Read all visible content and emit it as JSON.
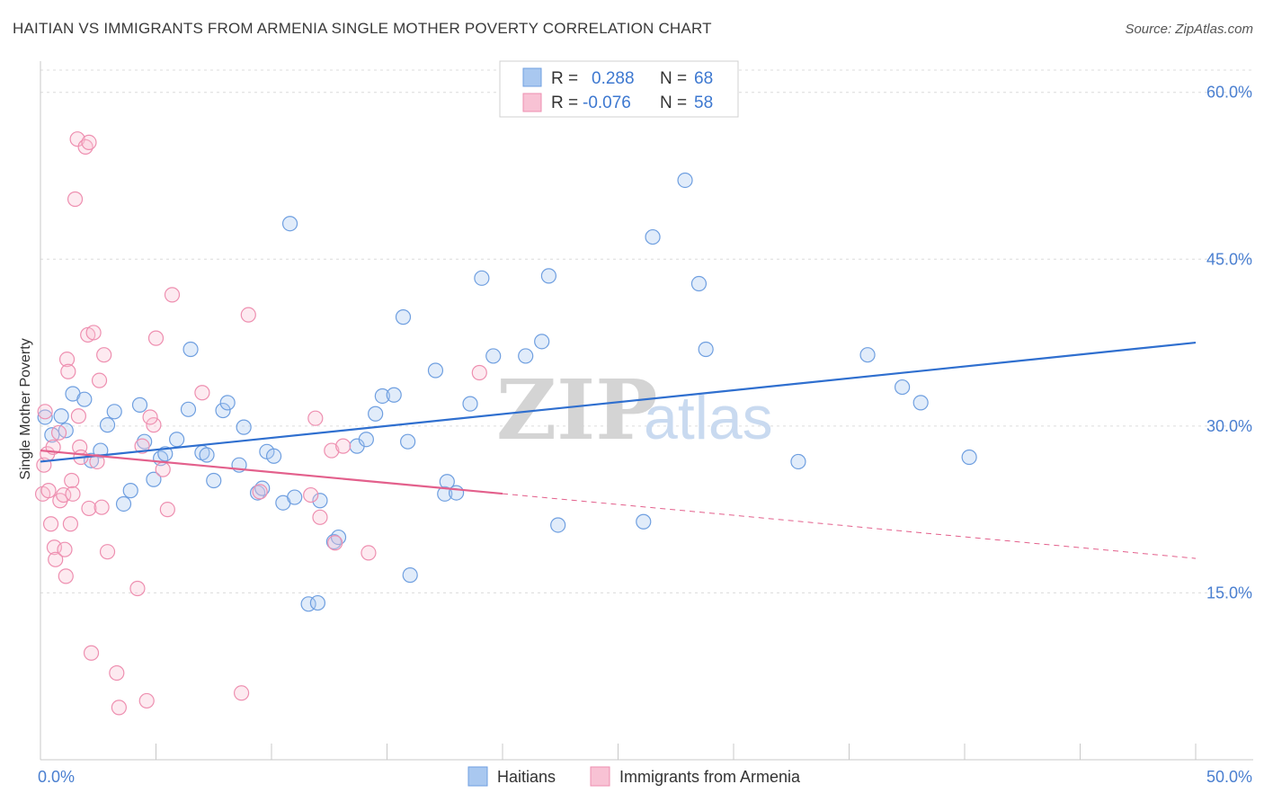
{
  "header": {
    "title": "HAITIAN VS IMMIGRANTS FROM ARMENIA SINGLE MOTHER POVERTY CORRELATION CHART",
    "source": "Source: ZipAtlas.com"
  },
  "watermark": {
    "zip": "ZIP",
    "atlas": "atlas"
  },
  "legend": {
    "rows": [
      {
        "r_label": "R =",
        "r_value": "0.288",
        "n_label": "N =",
        "n_value": "68",
        "color": "#a9c8f0",
        "stroke": "#6f9fe0"
      },
      {
        "r_label": "R =",
        "r_value": "-0.076",
        "n_label": "N =",
        "n_value": "58",
        "color": "#f8c2d4",
        "stroke": "#ee8fb0"
      }
    ]
  },
  "colors": {
    "blue": "#4a84d8",
    "blue_line": "#2f6fcf",
    "pink": "#ec8fb0",
    "pink_line": "#e3608c",
    "grid": "#dcdcdc",
    "tick_text": "#4a7fd0"
  },
  "chart_data": {
    "type": "scatter",
    "title": "HAITIAN VS IMMIGRANTS FROM ARMENIA SINGLE MOTHER POVERTY CORRELATION CHART",
    "xlabel": "",
    "ylabel": "Single Mother Poverty",
    "xlim": [
      0,
      50
    ],
    "ylim": [
      0,
      62
    ],
    "x_tick_labels": [
      "0.0%",
      "50.0%"
    ],
    "y_ticks": [
      15,
      30,
      45,
      60
    ],
    "y_tick_labels": [
      "15.0%",
      "30.0%",
      "45.0%",
      "60.0%"
    ],
    "grid": true,
    "legend_position": "top-center",
    "series": [
      {
        "name": "Haitians",
        "r": 0.288,
        "n": 68,
        "trend": {
          "x": [
            0,
            50
          ],
          "y": [
            26.8,
            37.5
          ],
          "dashed_from": null
        },
        "points": [
          [
            0.2,
            30.8
          ],
          [
            0.5,
            29.2
          ],
          [
            0.9,
            30.9
          ],
          [
            1.1,
            29.6
          ],
          [
            1.4,
            32.9
          ],
          [
            1.9,
            32.4
          ],
          [
            2.2,
            26.9
          ],
          [
            2.6,
            27.8
          ],
          [
            2.9,
            30.1
          ],
          [
            3.2,
            31.3
          ],
          [
            3.6,
            23.0
          ],
          [
            3.9,
            24.2
          ],
          [
            4.3,
            31.9
          ],
          [
            4.5,
            28.6
          ],
          [
            4.9,
            25.2
          ],
          [
            5.2,
            27.1
          ],
          [
            5.4,
            27.5
          ],
          [
            5.9,
            28.8
          ],
          [
            6.4,
            31.5
          ],
          [
            6.5,
            36.9
          ],
          [
            7.0,
            27.6
          ],
          [
            7.2,
            27.4
          ],
          [
            7.5,
            25.1
          ],
          [
            7.9,
            31.4
          ],
          [
            8.1,
            32.1
          ],
          [
            8.6,
            26.5
          ],
          [
            8.8,
            29.9
          ],
          [
            9.4,
            24.0
          ],
          [
            9.6,
            24.4
          ],
          [
            9.8,
            27.7
          ],
          [
            10.1,
            27.3
          ],
          [
            10.5,
            23.1
          ],
          [
            11.0,
            23.6
          ],
          [
            10.8,
            48.2
          ],
          [
            11.6,
            14.0
          ],
          [
            12.0,
            14.1
          ],
          [
            12.1,
            23.3
          ],
          [
            12.7,
            19.6
          ],
          [
            12.9,
            20.0
          ],
          [
            13.7,
            28.2
          ],
          [
            14.1,
            28.8
          ],
          [
            14.5,
            31.1
          ],
          [
            14.8,
            32.7
          ],
          [
            15.3,
            32.8
          ],
          [
            15.7,
            39.8
          ],
          [
            15.9,
            28.6
          ],
          [
            16.0,
            16.6
          ],
          [
            17.1,
            35.0
          ],
          [
            17.5,
            23.9
          ],
          [
            17.6,
            25.0
          ],
          [
            18.0,
            24.0
          ],
          [
            18.6,
            32.0
          ],
          [
            19.1,
            43.3
          ],
          [
            19.6,
            36.3
          ],
          [
            21.0,
            36.3
          ],
          [
            21.7,
            37.6
          ],
          [
            22.0,
            43.5
          ],
          [
            22.4,
            21.1
          ],
          [
            26.1,
            21.4
          ],
          [
            26.5,
            47.0
          ],
          [
            27.9,
            52.1
          ],
          [
            28.5,
            42.8
          ],
          [
            28.8,
            36.9
          ],
          [
            32.8,
            26.8
          ],
          [
            35.8,
            36.4
          ],
          [
            37.3,
            33.5
          ],
          [
            38.1,
            32.1
          ],
          [
            40.2,
            27.2
          ]
        ]
      },
      {
        "name": "Immigrants from Armenia",
        "r": -0.076,
        "n": 58,
        "trend": {
          "x": [
            0,
            50
          ],
          "y": [
            27.8,
            18.1
          ],
          "dashed_from": 20
        },
        "points": [
          [
            0.1,
            23.9
          ],
          [
            0.15,
            26.5
          ],
          [
            0.2,
            31.3
          ],
          [
            0.3,
            27.5
          ],
          [
            0.35,
            24.2
          ],
          [
            0.45,
            21.2
          ],
          [
            0.55,
            28.1
          ],
          [
            0.6,
            19.1
          ],
          [
            0.65,
            18.0
          ],
          [
            0.8,
            29.4
          ],
          [
            0.85,
            23.3
          ],
          [
            1.0,
            23.8
          ],
          [
            1.05,
            18.9
          ],
          [
            1.1,
            16.5
          ],
          [
            1.15,
            36.0
          ],
          [
            1.2,
            34.9
          ],
          [
            1.3,
            21.2
          ],
          [
            1.35,
            25.1
          ],
          [
            1.4,
            23.9
          ],
          [
            1.5,
            50.4
          ],
          [
            1.65,
            30.9
          ],
          [
            1.7,
            28.1
          ],
          [
            1.75,
            27.2
          ],
          [
            1.6,
            55.8
          ],
          [
            1.95,
            55.1
          ],
          [
            2.1,
            55.5
          ],
          [
            2.05,
            38.2
          ],
          [
            2.3,
            38.4
          ],
          [
            2.45,
            26.8
          ],
          [
            2.55,
            34.1
          ],
          [
            2.1,
            22.6
          ],
          [
            2.2,
            9.6
          ],
          [
            2.65,
            22.7
          ],
          [
            2.75,
            36.4
          ],
          [
            2.9,
            18.7
          ],
          [
            3.3,
            7.8
          ],
          [
            3.4,
            4.7
          ],
          [
            4.2,
            15.4
          ],
          [
            4.6,
            5.3
          ],
          [
            4.9,
            30.1
          ],
          [
            4.4,
            28.2
          ],
          [
            5.0,
            37.9
          ],
          [
            4.75,
            30.8
          ],
          [
            5.3,
            26.1
          ],
          [
            5.5,
            22.5
          ],
          [
            5.7,
            41.8
          ],
          [
            7.0,
            33.0
          ],
          [
            8.7,
            6.0
          ],
          [
            9.0,
            40.0
          ],
          [
            9.5,
            24.1
          ],
          [
            11.7,
            23.8
          ],
          [
            11.9,
            30.7
          ],
          [
            12.1,
            21.8
          ],
          [
            12.6,
            27.8
          ],
          [
            12.75,
            19.5
          ],
          [
            13.1,
            28.2
          ],
          [
            14.2,
            18.6
          ],
          [
            19.0,
            34.8
          ]
        ]
      }
    ]
  },
  "bottom_legend": {
    "items": [
      {
        "label": "Haitians"
      },
      {
        "label": "Immigrants from Armenia"
      }
    ]
  }
}
